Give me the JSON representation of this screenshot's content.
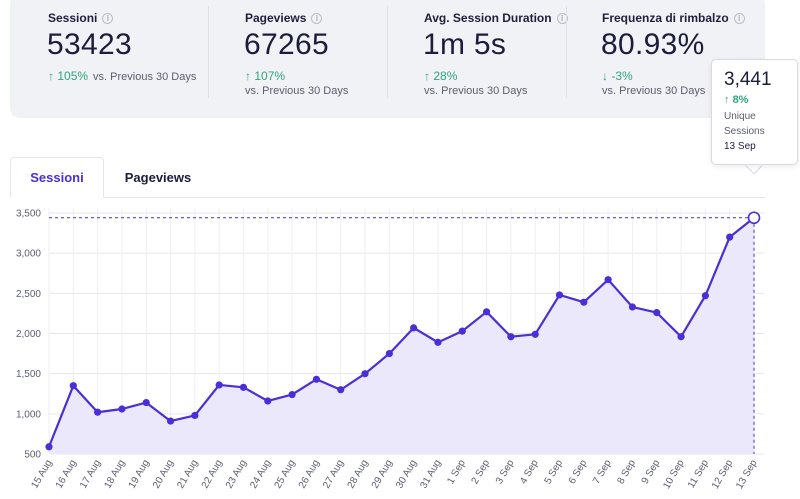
{
  "stats": [
    {
      "label": "Sessioni",
      "value": "53423",
      "delta": "105%",
      "direction": "up",
      "compare": "vs. Previous 30 Days",
      "info_icon": "info-circle-icon"
    },
    {
      "label": "Pageviews",
      "value": "67265",
      "delta": "107%",
      "direction": "up",
      "compare": "vs. Previous 30 Days",
      "info_icon": "info-circle-icon"
    },
    {
      "label": "Avg. Session Duration",
      "value": "1m 5s",
      "delta": "28%",
      "direction": "up",
      "compare": "vs. Previous 30 Days",
      "info_icon": "info-circle-icon"
    },
    {
      "label": "Frequenza di rimbalzo",
      "value": "80.93%",
      "delta": "-3%",
      "direction": "down",
      "compare": "vs. Previous 30 Days",
      "info_icon": "info-circle-icon"
    }
  ],
  "tooltip": {
    "value": "3,441",
    "delta": "8%",
    "label_line1": "Unique",
    "label_line2": "Sessions",
    "date": "13 Sep"
  },
  "tabs": [
    {
      "label": "Sessioni",
      "active": true
    },
    {
      "label": "Pageviews",
      "active": false
    }
  ],
  "colors": {
    "accent": "#4a2fd8",
    "line": "#4a2fd8",
    "area_fill": "#ece8fb",
    "positive": "#2fa57a"
  },
  "chart_data": {
    "type": "area",
    "categories": [
      "15 Aug",
      "16 Aug",
      "17 Aug",
      "18 Aug",
      "19 Aug",
      "20 Aug",
      "21 Aug",
      "22 Aug",
      "23 Aug",
      "24 Aug",
      "25 Aug",
      "26 Aug",
      "27 Aug",
      "28 Aug",
      "29 Aug",
      "30 Aug",
      "31 Aug",
      "1 Sep",
      "2 Sep",
      "3 Sep",
      "4 Sep",
      "5 Sep",
      "6 Sep",
      "7 Sep",
      "8 Sep",
      "9 Sep",
      "10 Sep",
      "11 Sep",
      "12 Sep",
      "13 Sep"
    ],
    "values": [
      590,
      1350,
      1020,
      1060,
      1140,
      910,
      980,
      1360,
      1330,
      1160,
      1240,
      1430,
      1300,
      1500,
      1750,
      2070,
      1890,
      2030,
      2270,
      1960,
      1990,
      2480,
      2390,
      2670,
      2330,
      2260,
      1960,
      2470,
      3200,
      3441
    ],
    "y_ticks": [
      "500",
      "1,000",
      "1,500",
      "2,000",
      "2,500",
      "3,000",
      "3,500"
    ],
    "y_tick_values": [
      500,
      1000,
      1500,
      2000,
      2500,
      3000,
      3500
    ],
    "ylim": [
      500,
      3500
    ],
    "grid": true,
    "highlight_index": 29
  }
}
